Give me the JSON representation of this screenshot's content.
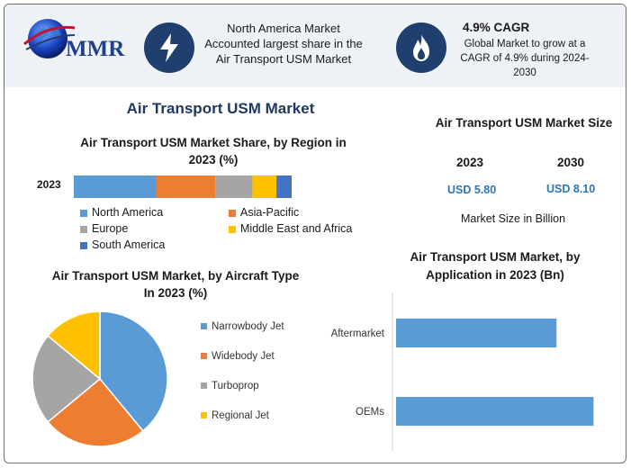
{
  "header": {
    "logo_text": "MMR",
    "box1_text": "North America Market Accounted largest share in the Air Transport USM Market",
    "box2_title": "4.9% CAGR",
    "box2_text": "Global Market to grow at a CAGR of 4.9% during 2024-2030"
  },
  "main_title": "Air Transport USM Market",
  "size_panel": {
    "title": "Air Transport USM Market Size",
    "year1": "2023",
    "year2": "2030",
    "value1": "USD 5.80",
    "value2": "USD 8.10",
    "note": "Market Size in Billion"
  },
  "colors": {
    "north_america": "#5b9bd5",
    "asia_pacific": "#ed7d31",
    "europe": "#a5a5a5",
    "mea": "#ffc000",
    "south_america": "#4472c4",
    "navy": "#1f3864",
    "value_blue": "#2e75b6"
  },
  "chart_data": [
    {
      "type": "bar",
      "orientation": "horizontal-stacked",
      "title": "Air Transport USM Market Share, by Region in 2023 (%)",
      "categories": [
        "2023"
      ],
      "series": [
        {
          "name": "North America",
          "values": [
            38
          ],
          "color": "#5b9bd5"
        },
        {
          "name": "Asia-Pacific",
          "values": [
            27
          ],
          "color": "#ed7d31"
        },
        {
          "name": "Europe",
          "values": [
            17
          ],
          "color": "#a5a5a5"
        },
        {
          "name": "Middle East and Africa",
          "values": [
            11
          ],
          "color": "#ffc000"
        },
        {
          "name": "South America",
          "values": [
            7
          ],
          "color": "#4472c4"
        }
      ]
    },
    {
      "type": "pie",
      "title": "Air Transport USM Market, by Aircraft Type In 2023 (%)",
      "categories": [
        "Narrowbody Jet",
        "Widebody Jet",
        "Turboprop",
        "Regional Jet"
      ],
      "values": [
        39,
        25,
        22,
        14
      ],
      "colors": [
        "#5b9bd5",
        "#ed7d31",
        "#a5a5a5",
        "#ffc000"
      ]
    },
    {
      "type": "bar",
      "orientation": "horizontal",
      "title": "Air Transport USM Market, by Application in 2023 (Bn)",
      "categories": [
        "Aftermarket",
        "OEMs"
      ],
      "values": [
        2.6,
        3.2
      ],
      "xlim": [
        0,
        3.5
      ],
      "color": "#5b9bd5"
    }
  ]
}
